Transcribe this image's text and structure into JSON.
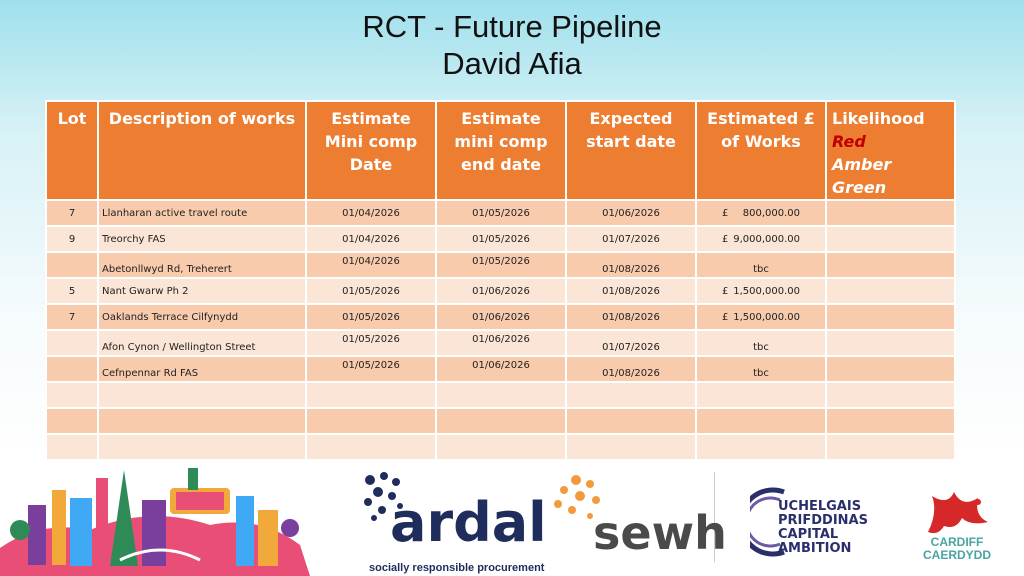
{
  "title": {
    "line1": "RCT - Future Pipeline",
    "line2": "David Afia"
  },
  "table": {
    "headers": {
      "lot": "Lot",
      "description": "Description of works",
      "mini_comp_date": "Estimate Mini comp Date",
      "mini_comp_end": "Estimate mini comp end date",
      "start_date": "Expected start date",
      "value": "Estimated £ of Works",
      "likelihood": "Likelihood",
      "likelihood_red": "Red",
      "likelihood_amber": "Amber",
      "likelihood_green": "Green"
    },
    "rows": [
      {
        "lot": "7",
        "description": "Llanharan active travel route",
        "mini_comp_date": "01/04/2026",
        "mini_comp_end": "01/05/2026",
        "start_date": "01/06/2026",
        "currency": "£",
        "value": "800,000.00",
        "likelihood": ""
      },
      {
        "lot": "9",
        "description": "Treorchy FAS",
        "mini_comp_date": "01/04/2026",
        "mini_comp_end": "01/05/2026",
        "start_date": "01/07/2026",
        "currency": "£",
        "value": "9,000,000.00",
        "likelihood": ""
      },
      {
        "lot": "",
        "description": "Abetonllwyd Rd, Treherert",
        "mini_comp_date": "01/04/2026",
        "mini_comp_end": "01/05/2026",
        "start_date": "01/08/2026",
        "currency": "",
        "value": "tbc",
        "likelihood": ""
      },
      {
        "lot": "5",
        "description": "Nant Gwarw Ph 2",
        "mini_comp_date": "01/05/2026",
        "mini_comp_end": "01/06/2026",
        "start_date": "01/08/2026",
        "currency": "£",
        "value": "1,500,000.00",
        "likelihood": ""
      },
      {
        "lot": "7",
        "description": "Oaklands Terrace Cilfynydd",
        "mini_comp_date": "01/05/2026",
        "mini_comp_end": "01/06/2026",
        "start_date": "01/08/2026",
        "currency": "£",
        "value": "1,500,000.00",
        "likelihood": ""
      },
      {
        "lot": "",
        "description": "Afon Cynon / Wellington Street",
        "mini_comp_date": "01/05/2026",
        "mini_comp_end": "01/06/2026",
        "start_date": "01/07/2026",
        "currency": "",
        "value": "tbc",
        "likelihood": ""
      },
      {
        "lot": "",
        "description": "Cefnpennar Rd FAS",
        "mini_comp_date": "01/05/2026",
        "mini_comp_end": "01/06/2026",
        "start_date": "01/08/2026",
        "currency": "",
        "value": "tbc",
        "likelihood": ""
      }
    ]
  },
  "logos": {
    "ardal": "ardal",
    "ardal_tagline": "socially responsible procurement",
    "sewh": "sewh",
    "ucc_line1": "UCHELGAIS",
    "ucc_line2": "PRIFDDINAS",
    "ucc_line3": "CAPITAL",
    "ucc_line4": "AMBITION",
    "cardiff_line1": "CARDIFF",
    "cardiff_line2": "CAERDYDD"
  },
  "colors": {
    "header": "#ed7d31",
    "row_odd": "#f8cbad",
    "row_even": "#fbe5d6",
    "red": "#c00000",
    "ardal_navy": "#1f2d5c",
    "sewh_orange": "#f39a3d"
  }
}
